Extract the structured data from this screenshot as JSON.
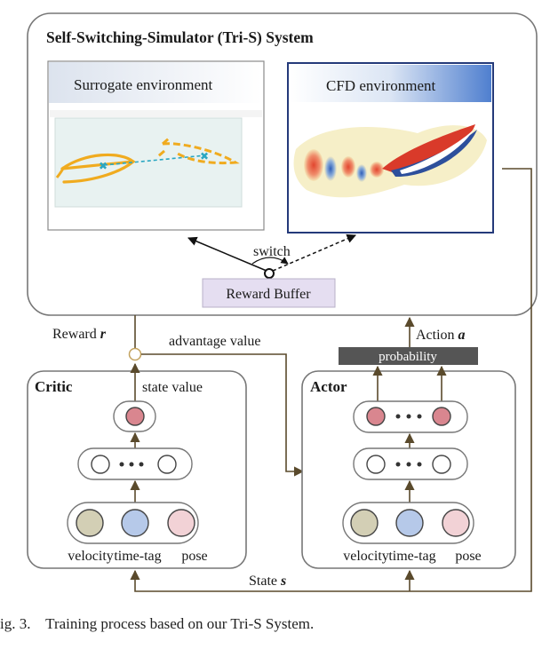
{
  "system": {
    "title": "Self-Switching-Simulator (Tri-S) System",
    "surrogate_label": "Surrogate environment",
    "cfd_label": "CFD environment",
    "switch_label": "switch",
    "reward_buffer_label": "Reward Buffer"
  },
  "flow": {
    "reward_label": "Reward",
    "reward_symbol": "r",
    "advantage_label": "advantage value",
    "action_label": "Action",
    "action_symbol": "a",
    "probability_label": "probability",
    "state_label": "State",
    "state_symbol": "s"
  },
  "critic": {
    "title": "Critic",
    "state_value_label": "state value",
    "inputs": [
      "velocity",
      "time-tag",
      "pose"
    ]
  },
  "actor": {
    "title": "Actor",
    "inputs": [
      "velocity",
      "time-tag",
      "pose"
    ]
  },
  "colors": {
    "node_red": "#d9868f",
    "node_olive": "#d3cfb5",
    "node_blue": "#b6c9e9",
    "node_pink": "#f2d2d6",
    "fish_orange": "#f0ab1f",
    "line_dash": "#2aa7c2",
    "prob_bar": "#555555",
    "buffer_fill": "#e5def1",
    "arrow": "#5a4a2c"
  },
  "caption": "ig. 3.    Training process based on our Tri-S System."
}
